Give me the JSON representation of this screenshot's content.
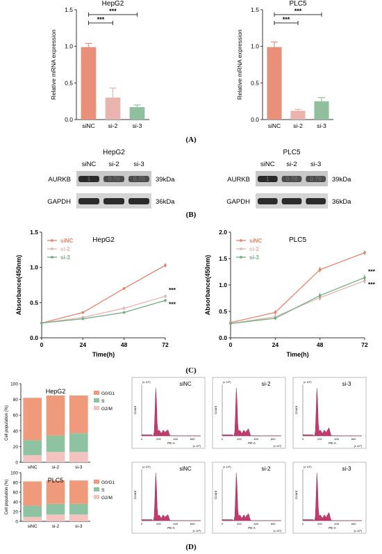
{
  "panel_labels": {
    "a": "(A)",
    "b": "(B)",
    "c": "(C)",
    "d": "(D)"
  },
  "colors": {
    "siNC": "#e8907a",
    "si2": "#e8b4ad",
    "si3": "#8fbf9c",
    "line_siNC": "#e8836b",
    "line_si2": "#e8b4ad",
    "line_si3": "#6fae84",
    "histogram_fill": "#c23a6e",
    "stack_g0g1": "#ef9a7a",
    "stack_s": "#8dc3a0",
    "stack_g2m": "#f2c3bf"
  },
  "western_blot": {
    "hepg2": {
      "title": "HepG2",
      "lanes": [
        "siNC",
        "si-2",
        "si-3"
      ],
      "band_values": [
        "1",
        "0.70",
        "0.70"
      ],
      "rows": [
        {
          "protein": "AURKB",
          "size": "39kDa"
        },
        {
          "protein": "GAPDH",
          "size": "36kDa"
        }
      ]
    },
    "plc5": {
      "title": "PLC5",
      "lanes": [
        "siNC",
        "si-2",
        "si-3"
      ],
      "band_values": [
        "1",
        "0.78",
        "0.79"
      ],
      "rows": [
        {
          "protein": "AURKB",
          "size": "39kDa"
        },
        {
          "protein": "GAPDH",
          "size": "36kDa"
        }
      ]
    }
  },
  "flow": {
    "top_row": [
      "siNC",
      "si-2",
      "si-3"
    ],
    "bottom_row": [
      "siNC",
      "si-2",
      "si-3"
    ],
    "ylabel": "Count",
    "xlabel": "PE-A",
    "xunit": "(x 10³)",
    "yunit": "(x 10¹)",
    "xticks": [
      "0",
      "200",
      "400",
      "600"
    ]
  },
  "chart_data": [
    {
      "id": "A1",
      "type": "bar",
      "title": "HepG2",
      "ylabel": "Relative mRNA expression",
      "xlabel": "",
      "categories": [
        "siNC",
        "si-2",
        "si-3"
      ],
      "values": [
        0.99,
        0.3,
        0.17
      ],
      "errors": [
        0.05,
        0.13,
        0.03
      ],
      "ylim": [
        0,
        1.5
      ],
      "yticks": [
        "0.0",
        "0.5",
        "1.0",
        "1.5"
      ],
      "significance": [
        {
          "from": "siNC",
          "to": "si-2",
          "label": "***"
        },
        {
          "from": "siNC",
          "to": "si-3",
          "label": "***"
        }
      ]
    },
    {
      "id": "A2",
      "type": "bar",
      "title": "PLC5",
      "ylabel": "Relative mRNA expression",
      "xlabel": "",
      "categories": [
        "siNC",
        "si-2",
        "si-3"
      ],
      "values": [
        0.99,
        0.12,
        0.25
      ],
      "errors": [
        0.07,
        0.02,
        0.05
      ],
      "ylim": [
        0,
        1.5
      ],
      "yticks": [
        "0.0",
        "0.5",
        "1.0",
        "1.5"
      ],
      "significance": [
        {
          "from": "siNC",
          "to": "si-2",
          "label": "***"
        },
        {
          "from": "siNC",
          "to": "si-3",
          "label": "***"
        }
      ]
    },
    {
      "id": "C1",
      "type": "line",
      "title": "HepG2",
      "xlabel": "Time(h)",
      "ylabel": "Absorbance(450nm)",
      "x": [
        0,
        24,
        48,
        72
      ],
      "xlim": [
        0,
        72
      ],
      "ylim": [
        0,
        1.5
      ],
      "xticks": [
        "0",
        "24",
        "48",
        "72"
      ],
      "yticks": [
        "0.0",
        "0.5",
        "1.0",
        "1.5"
      ],
      "legend_position": "top-left",
      "series": [
        {
          "name": "siNC",
          "values": [
            0.21,
            0.36,
            0.7,
            1.03
          ],
          "errors": [
            0.01,
            0.01,
            0.01,
            0.03
          ]
        },
        {
          "name": "si-2",
          "values": [
            0.21,
            0.29,
            0.42,
            0.59
          ],
          "errors": [
            0.01,
            0.01,
            0.02,
            0.02
          ]
        },
        {
          "name": "si-3",
          "values": [
            0.21,
            0.27,
            0.36,
            0.53
          ],
          "errors": [
            0.01,
            0.01,
            0.01,
            0.02
          ]
        }
      ],
      "annotations": [
        "***",
        "***"
      ]
    },
    {
      "id": "C2",
      "type": "line",
      "title": "PLC5",
      "xlabel": "Time(h)",
      "ylabel": "Absorbance(450nm)",
      "x": [
        0,
        24,
        48,
        72
      ],
      "xlim": [
        0,
        72
      ],
      "ylim": [
        0,
        2.0
      ],
      "xticks": [
        "0",
        "24",
        "48",
        "72"
      ],
      "yticks": [
        "0.0",
        "0.5",
        "1.0",
        "1.5",
        "2.0"
      ],
      "legend_position": "top-left",
      "series": [
        {
          "name": "siNC",
          "values": [
            0.29,
            0.48,
            1.29,
            1.61
          ],
          "errors": [
            0.02,
            0.04,
            0.05,
            0.04
          ]
        },
        {
          "name": "si-2",
          "values": [
            0.27,
            0.4,
            0.76,
            1.08
          ],
          "errors": [
            0.02,
            0.03,
            0.05,
            0.05
          ]
        },
        {
          "name": "si-3",
          "values": [
            0.27,
            0.37,
            0.8,
            1.14
          ],
          "errors": [
            0.02,
            0.03,
            0.05,
            0.05
          ]
        }
      ],
      "annotations": [
        "***",
        "***"
      ]
    },
    {
      "id": "D1",
      "type": "bar",
      "stacked": true,
      "title": "HepG2",
      "ylabel": "Cell population (%)",
      "categories": [
        "siNC",
        "si-2",
        "si-3"
      ],
      "ylim": [
        0,
        100
      ],
      "yticks": [
        "0",
        "20",
        "40",
        "60",
        "80",
        "100"
      ],
      "legend_position": "right",
      "series": [
        {
          "name": "G2/M",
          "values": [
            9,
            13,
            13
          ]
        },
        {
          "name": "S",
          "values": [
            19,
            21,
            24
          ]
        },
        {
          "name": "G0/G1",
          "values": [
            54,
            51,
            48
          ]
        }
      ]
    },
    {
      "id": "D2",
      "type": "bar",
      "stacked": true,
      "title": "PLC5",
      "ylabel": "Cell population (%)",
      "categories": [
        "siNC",
        "si-2",
        "si-3"
      ],
      "ylim": [
        0,
        100
      ],
      "yticks": [
        "0",
        "20",
        "40",
        "60",
        "80",
        "100"
      ],
      "legend_position": "right",
      "series": [
        {
          "name": "G2/M",
          "values": [
            9,
            14,
            14
          ]
        },
        {
          "name": "S",
          "values": [
            23,
            22,
            22
          ]
        },
        {
          "name": "G0/G1",
          "values": [
            50,
            48,
            48
          ]
        }
      ]
    }
  ]
}
